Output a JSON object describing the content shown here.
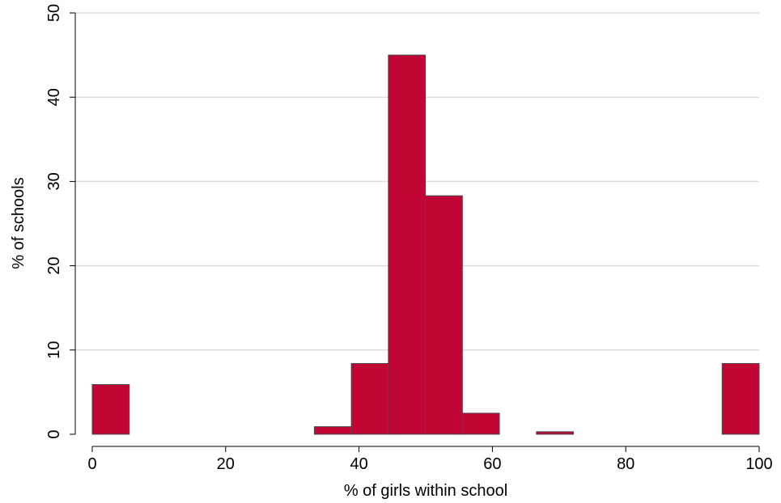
{
  "chart_data": {
    "type": "bar",
    "title": "",
    "xlabel": "% of girls within school",
    "ylabel": "% of schools",
    "xlim": [
      0,
      100
    ],
    "ylim": [
      0,
      50
    ],
    "x_ticks": [
      0,
      20,
      40,
      60,
      80,
      100
    ],
    "y_ticks": [
      0,
      10,
      20,
      30,
      40,
      50
    ],
    "x_tick_labels": [
      "0",
      "20",
      "40",
      "60",
      "80",
      "100"
    ],
    "y_tick_labels": [
      "0",
      "10",
      "20",
      "30",
      "40",
      "50"
    ],
    "grid": true,
    "bin_width": 5.55,
    "bins": [
      {
        "start": 0.0,
        "end": 5.55,
        "value": 5.9
      },
      {
        "start": 33.3,
        "end": 38.85,
        "value": 0.9
      },
      {
        "start": 38.85,
        "end": 44.4,
        "value": 8.4
      },
      {
        "start": 44.4,
        "end": 49.95,
        "value": 45.0
      },
      {
        "start": 49.95,
        "end": 55.5,
        "value": 28.3
      },
      {
        "start": 55.5,
        "end": 61.05,
        "value": 2.5
      },
      {
        "start": 66.6,
        "end": 72.15,
        "value": 0.3
      },
      {
        "start": 94.45,
        "end": 100.0,
        "value": 8.4
      }
    ],
    "bar_color": "#c10534",
    "bar_edge_color": "#4a4a4a",
    "grid_color": "#dcdcdc"
  }
}
